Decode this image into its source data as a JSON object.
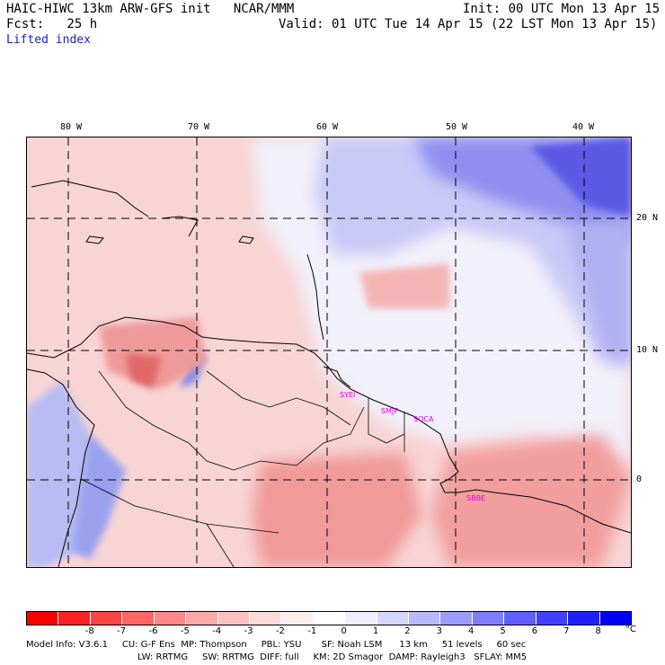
{
  "header": {
    "title": "HAIC-HIWC 13km ARW-GFS init   NCAR/MMM",
    "init": "Init: 00 UTC Mon 13 Apr 15",
    "forecast": "Fcst:   25 h",
    "valid": "Valid: 01 UTC Tue 14 Apr 15 (22 LST Mon 13 Apr 15)",
    "field": "Lifted index"
  },
  "axes": {
    "lon_labels": [
      "80 W",
      "70 W",
      "60 W",
      "50 W",
      "40 W"
    ],
    "lat_labels": [
      "20 N",
      "10 N",
      "0"
    ]
  },
  "stations": [
    "SYEI",
    "SMJP",
    "SOCA",
    "SBBE"
  ],
  "colorbar": {
    "colors": [
      "#ff0000",
      "#ff2222",
      "#ff4444",
      "#ff6666",
      "#ff8888",
      "#ffaaaa",
      "#ffc0c0",
      "#ffdada",
      "#ffeeee",
      "#ffffff",
      "#eeeeff",
      "#d6d6ff",
      "#b8b8ff",
      "#9c9cff",
      "#7e7eff",
      "#6060ff",
      "#4040ff",
      "#2020ff",
      "#0000ff"
    ],
    "labels": [
      "-8",
      "-7",
      "-6",
      "-5",
      "-4",
      "-3",
      "-2",
      "-1",
      "0",
      "1",
      "2",
      "3",
      "4",
      "5",
      "6",
      "7",
      "8"
    ],
    "unit": "°C"
  },
  "footer": {
    "line1": "Model Info: V3.6.1     CU: G-F Ens  MP: Thompson     PBL: YSU       SF: Noah LSM      13 km     51 levels     60 sec",
    "line2": "LW: RRTMG     SW: RRTMG  DIFF: full     KM: 2D Smagor  DAMP: Rayleigh3   SFLAY: MM5"
  }
}
